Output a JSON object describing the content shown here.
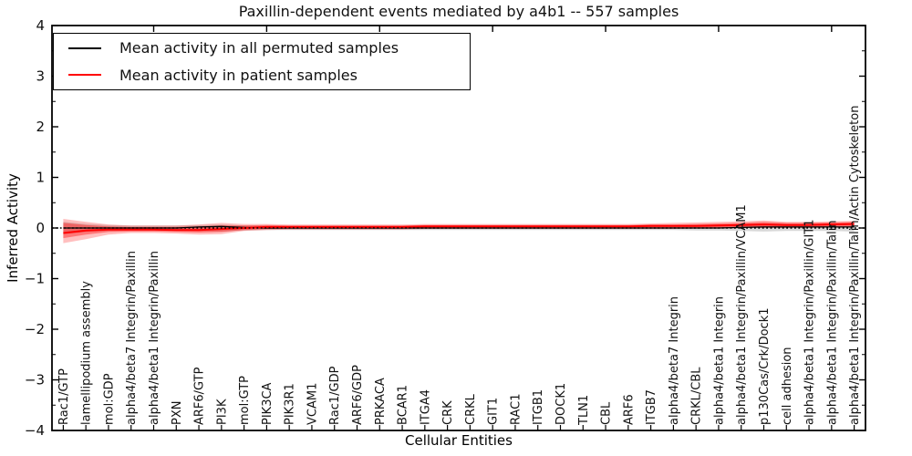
{
  "title": "Paxillin-dependent events mediated by a4b1 -- 557 samples",
  "legend": {
    "items": [
      {
        "label": "Mean activity in all permuted samples",
        "color": "#000000"
      },
      {
        "label": "Mean activity in patient samples",
        "color": "#ff0000"
      }
    ],
    "position": "upper left"
  },
  "colors": {
    "frame": "#000000",
    "permuted_line": "#000000",
    "permuted_band": "#aaaaaa",
    "patient_line": "#ff0000",
    "patient_band": "#ff0000",
    "zero_line": "#000000",
    "background": "#ffffff"
  },
  "chart_data": {
    "type": "line",
    "title": "Paxillin-dependent events mediated by a4b1 -- 557 samples",
    "xlabel": "Cellular Entities",
    "ylabel": "Inferred Activity",
    "ylim": [
      -4,
      4
    ],
    "yticks": [
      4,
      3,
      2,
      1,
      0,
      -1,
      -2,
      -3,
      -4
    ],
    "y_minor_step": 0.5,
    "grid": false,
    "zero_line_style": "dotted",
    "legend_position": "upper left",
    "top_tick_indices": [
      4,
      9,
      14,
      19,
      24,
      29,
      34
    ],
    "categories": [
      "Rac1/GTP",
      "lamellipodium assembly",
      "mol:GDP",
      "alpha4/beta7 Integrin/Paxillin",
      "alpha4/beta1 Integrin/Paxillin",
      "PXN",
      "ARF6/GTP",
      "PI3K",
      "mol:GTP",
      "PIK3CA",
      "PIK3R1",
      "VCAM1",
      "Rac1/GDP",
      "ARF6/GDP",
      "PRKACA",
      "BCAR1",
      "ITGA4",
      "CRK",
      "CRKL",
      "GIT1",
      "RAC1",
      "ITGB1",
      "DOCK1",
      "TLN1",
      "CBL",
      "ARF6",
      "ITGB7",
      "alpha4/beta7 Integrin",
      "CRKL/CBL",
      "alpha4/beta1 Integrin",
      "alpha4/beta1 Integrin/Paxillin/VCAM1",
      "p130Cas/Crk/Dock1",
      "cell adhesion",
      "alpha4/beta1 Integrin/Paxillin/GIT1",
      "alpha4/beta1 Integrin/Paxillin/Talin",
      "alpha4/beta1 Integrin/Paxillin/Talin/Actin Cytoskeleton"
    ],
    "series": [
      {
        "name": "Mean activity in all permuted samples",
        "color": "#000000",
        "values": [
          0,
          0,
          0,
          0,
          0,
          0,
          0.02,
          0.03,
          0.01,
          0,
          0,
          0,
          0,
          0,
          0,
          0,
          0,
          0,
          0,
          0,
          0,
          0,
          0,
          0,
          0,
          0,
          0,
          0,
          0,
          0,
          0.01,
          0.02,
          0.02,
          0.02,
          0.02,
          0.02
        ],
        "band_lo": [
          -0.12,
          -0.08,
          -0.06,
          -0.05,
          -0.05,
          -0.05,
          -0.06,
          -0.07,
          -0.05,
          -0.04,
          -0.04,
          -0.04,
          -0.04,
          -0.04,
          -0.04,
          -0.04,
          -0.04,
          -0.04,
          -0.04,
          -0.04,
          -0.04,
          -0.04,
          -0.04,
          -0.04,
          -0.04,
          -0.04,
          -0.04,
          -0.04,
          -0.05,
          -0.05,
          -0.06,
          -0.07,
          -0.06,
          -0.06,
          -0.06,
          -0.07
        ],
        "band_hi": [
          0.12,
          0.08,
          0.06,
          0.05,
          0.05,
          0.05,
          0.06,
          0.07,
          0.05,
          0.04,
          0.04,
          0.04,
          0.04,
          0.04,
          0.04,
          0.04,
          0.04,
          0.04,
          0.04,
          0.04,
          0.04,
          0.04,
          0.04,
          0.04,
          0.04,
          0.04,
          0.04,
          0.04,
          0.05,
          0.05,
          0.05,
          0.05,
          0.04,
          0.04,
          0.04,
          0.04
        ]
      },
      {
        "name": "Mean activity in patient samples",
        "color": "#ff0000",
        "values": [
          -0.1,
          -0.05,
          -0.03,
          -0.03,
          -0.03,
          -0.04,
          -0.04,
          -0.02,
          0.0,
          0.02,
          0.02,
          0.02,
          0.02,
          0.02,
          0.02,
          0.02,
          0.03,
          0.03,
          0.03,
          0.03,
          0.03,
          0.03,
          0.03,
          0.03,
          0.03,
          0.03,
          0.04,
          0.04,
          0.04,
          0.05,
          0.06,
          0.07,
          0.06,
          0.06,
          0.07,
          0.08
        ],
        "band_outer_lo": [
          -0.3,
          -0.22,
          -0.13,
          -0.1,
          -0.1,
          -0.11,
          -0.13,
          -0.12,
          -0.06,
          -0.04,
          -0.03,
          -0.03,
          -0.03,
          -0.03,
          -0.03,
          -0.03,
          -0.02,
          -0.02,
          -0.02,
          -0.02,
          -0.02,
          -0.02,
          -0.02,
          -0.02,
          -0.02,
          -0.02,
          -0.02,
          -0.02,
          -0.01,
          -0.01,
          0.0,
          0.0,
          0.0,
          0.0,
          0.01,
          0.02
        ],
        "band_outer_hi": [
          0.18,
          0.12,
          0.07,
          0.05,
          0.05,
          0.05,
          0.07,
          0.1,
          0.08,
          0.08,
          0.07,
          0.07,
          0.07,
          0.07,
          0.07,
          0.07,
          0.08,
          0.08,
          0.08,
          0.08,
          0.08,
          0.08,
          0.08,
          0.08,
          0.08,
          0.08,
          0.09,
          0.1,
          0.11,
          0.12,
          0.13,
          0.15,
          0.12,
          0.12,
          0.13,
          0.14
        ],
        "band_inner_lo": [
          -0.2,
          -0.13,
          -0.08,
          -0.07,
          -0.07,
          -0.08,
          -0.09,
          -0.08,
          -0.04,
          -0.02,
          -0.01,
          -0.01,
          -0.01,
          -0.01,
          -0.01,
          -0.01,
          0.0,
          0.0,
          0.0,
          0.0,
          0.0,
          0.0,
          0.0,
          0.0,
          0.0,
          0.0,
          0.0,
          0.0,
          0.0,
          0.01,
          0.01,
          0.02,
          0.02,
          0.02,
          0.03,
          0.03
        ],
        "band_inner_hi": [
          0.1,
          0.06,
          0.03,
          0.02,
          0.02,
          0.02,
          0.03,
          0.05,
          0.05,
          0.06,
          0.05,
          0.05,
          0.05,
          0.05,
          0.05,
          0.05,
          0.06,
          0.06,
          0.06,
          0.06,
          0.06,
          0.06,
          0.06,
          0.06,
          0.06,
          0.06,
          0.07,
          0.07,
          0.08,
          0.09,
          0.1,
          0.12,
          0.1,
          0.1,
          0.11,
          0.12
        ]
      }
    ]
  }
}
